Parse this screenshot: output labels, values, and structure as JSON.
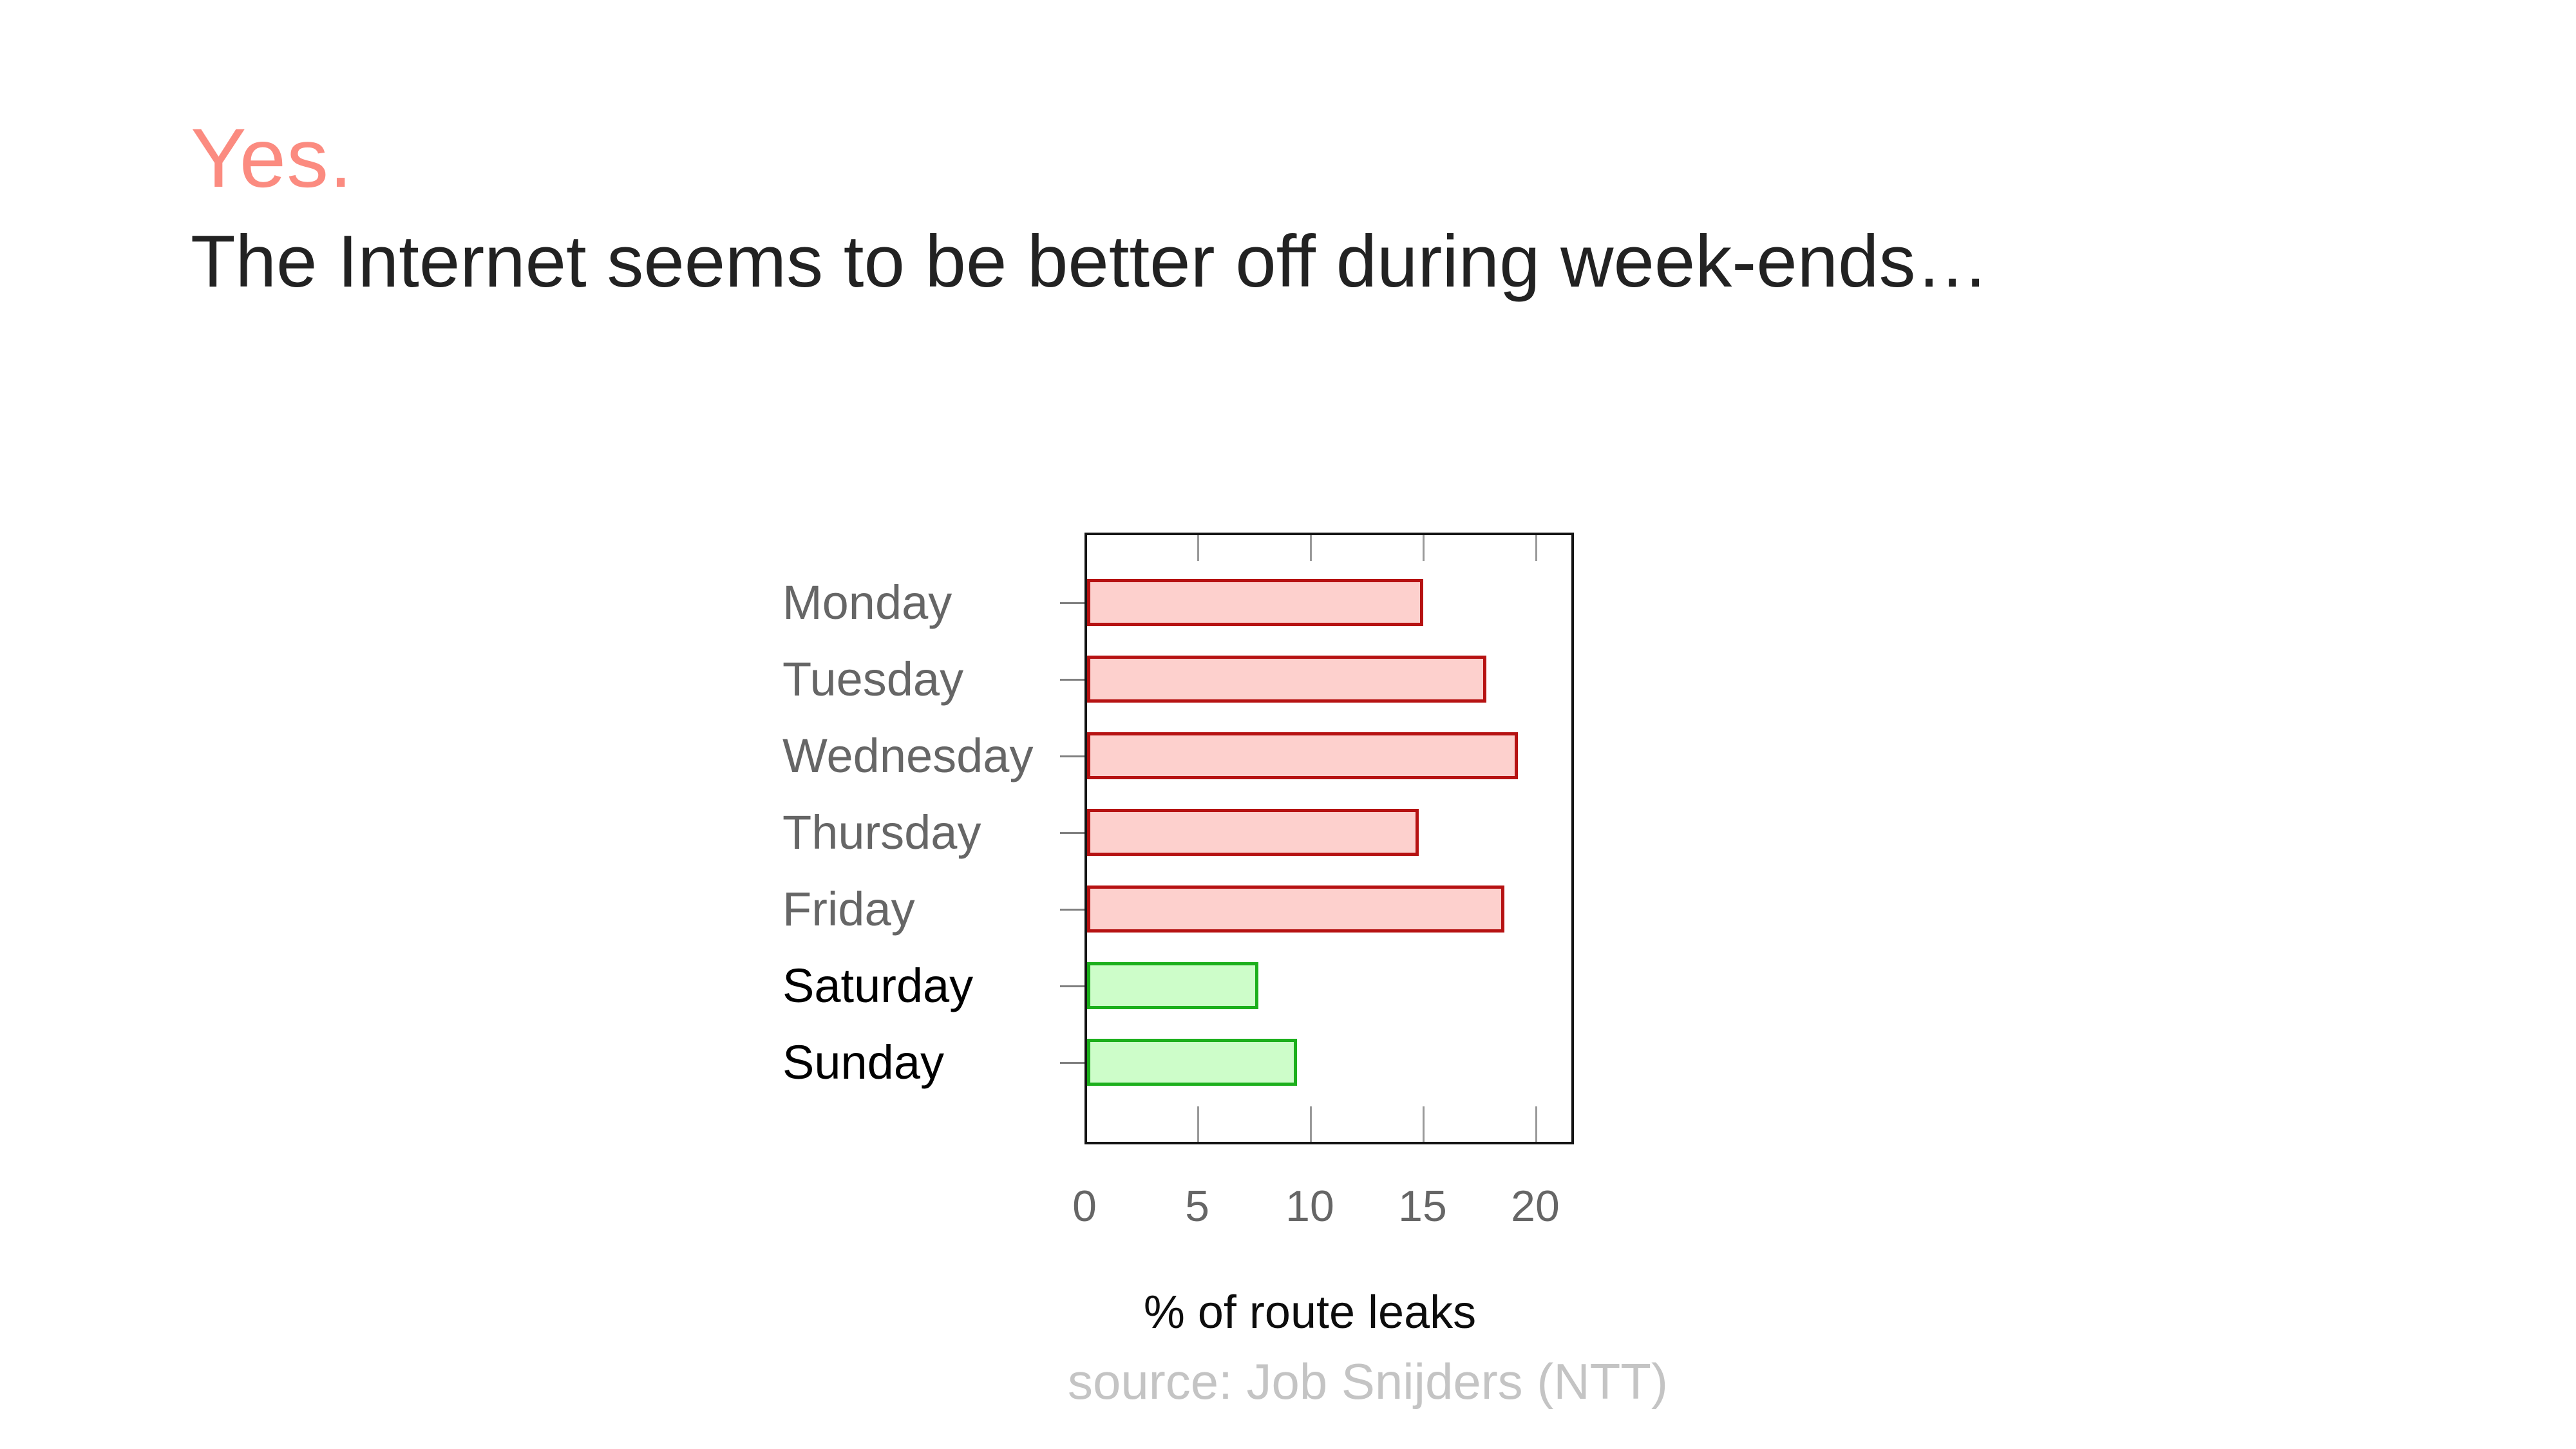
{
  "slide": {
    "title": "Yes.",
    "subtitle": "The Internet seems to be better off during week-ends…"
  },
  "chart_data": {
    "type": "bar",
    "orientation": "horizontal",
    "title": "",
    "xlabel": "% of route leaks",
    "ylabel": "",
    "categories": [
      "Monday",
      "Tuesday",
      "Wednesday",
      "Thursday",
      "Friday",
      "Saturday",
      "Sunday"
    ],
    "values": [
      14.9,
      17.7,
      19.1,
      14.7,
      18.5,
      7.6,
      9.3
    ],
    "groups": [
      "weekday",
      "weekday",
      "weekday",
      "weekday",
      "weekday",
      "weekend",
      "weekend"
    ],
    "x_ticks": [
      "0",
      "5",
      "10",
      "15",
      "20"
    ],
    "x_tick_values": [
      0,
      5,
      10,
      15,
      20
    ],
    "xlim": [
      0,
      21.7
    ],
    "grid": false,
    "legend": "none",
    "colors": {
      "weekday_fill": "#fdd0cd",
      "weekday_border": "#b61212",
      "weekend_fill": "#cdfdc9",
      "weekend_border": "#1caf1c",
      "weekday_label": "#666666",
      "weekend_label": "#000000",
      "title_accent": "#fb8b80",
      "tick_label": "#666666",
      "source_text": "#c4c4c4"
    },
    "source": "source: Job Snijders (NTT)"
  }
}
